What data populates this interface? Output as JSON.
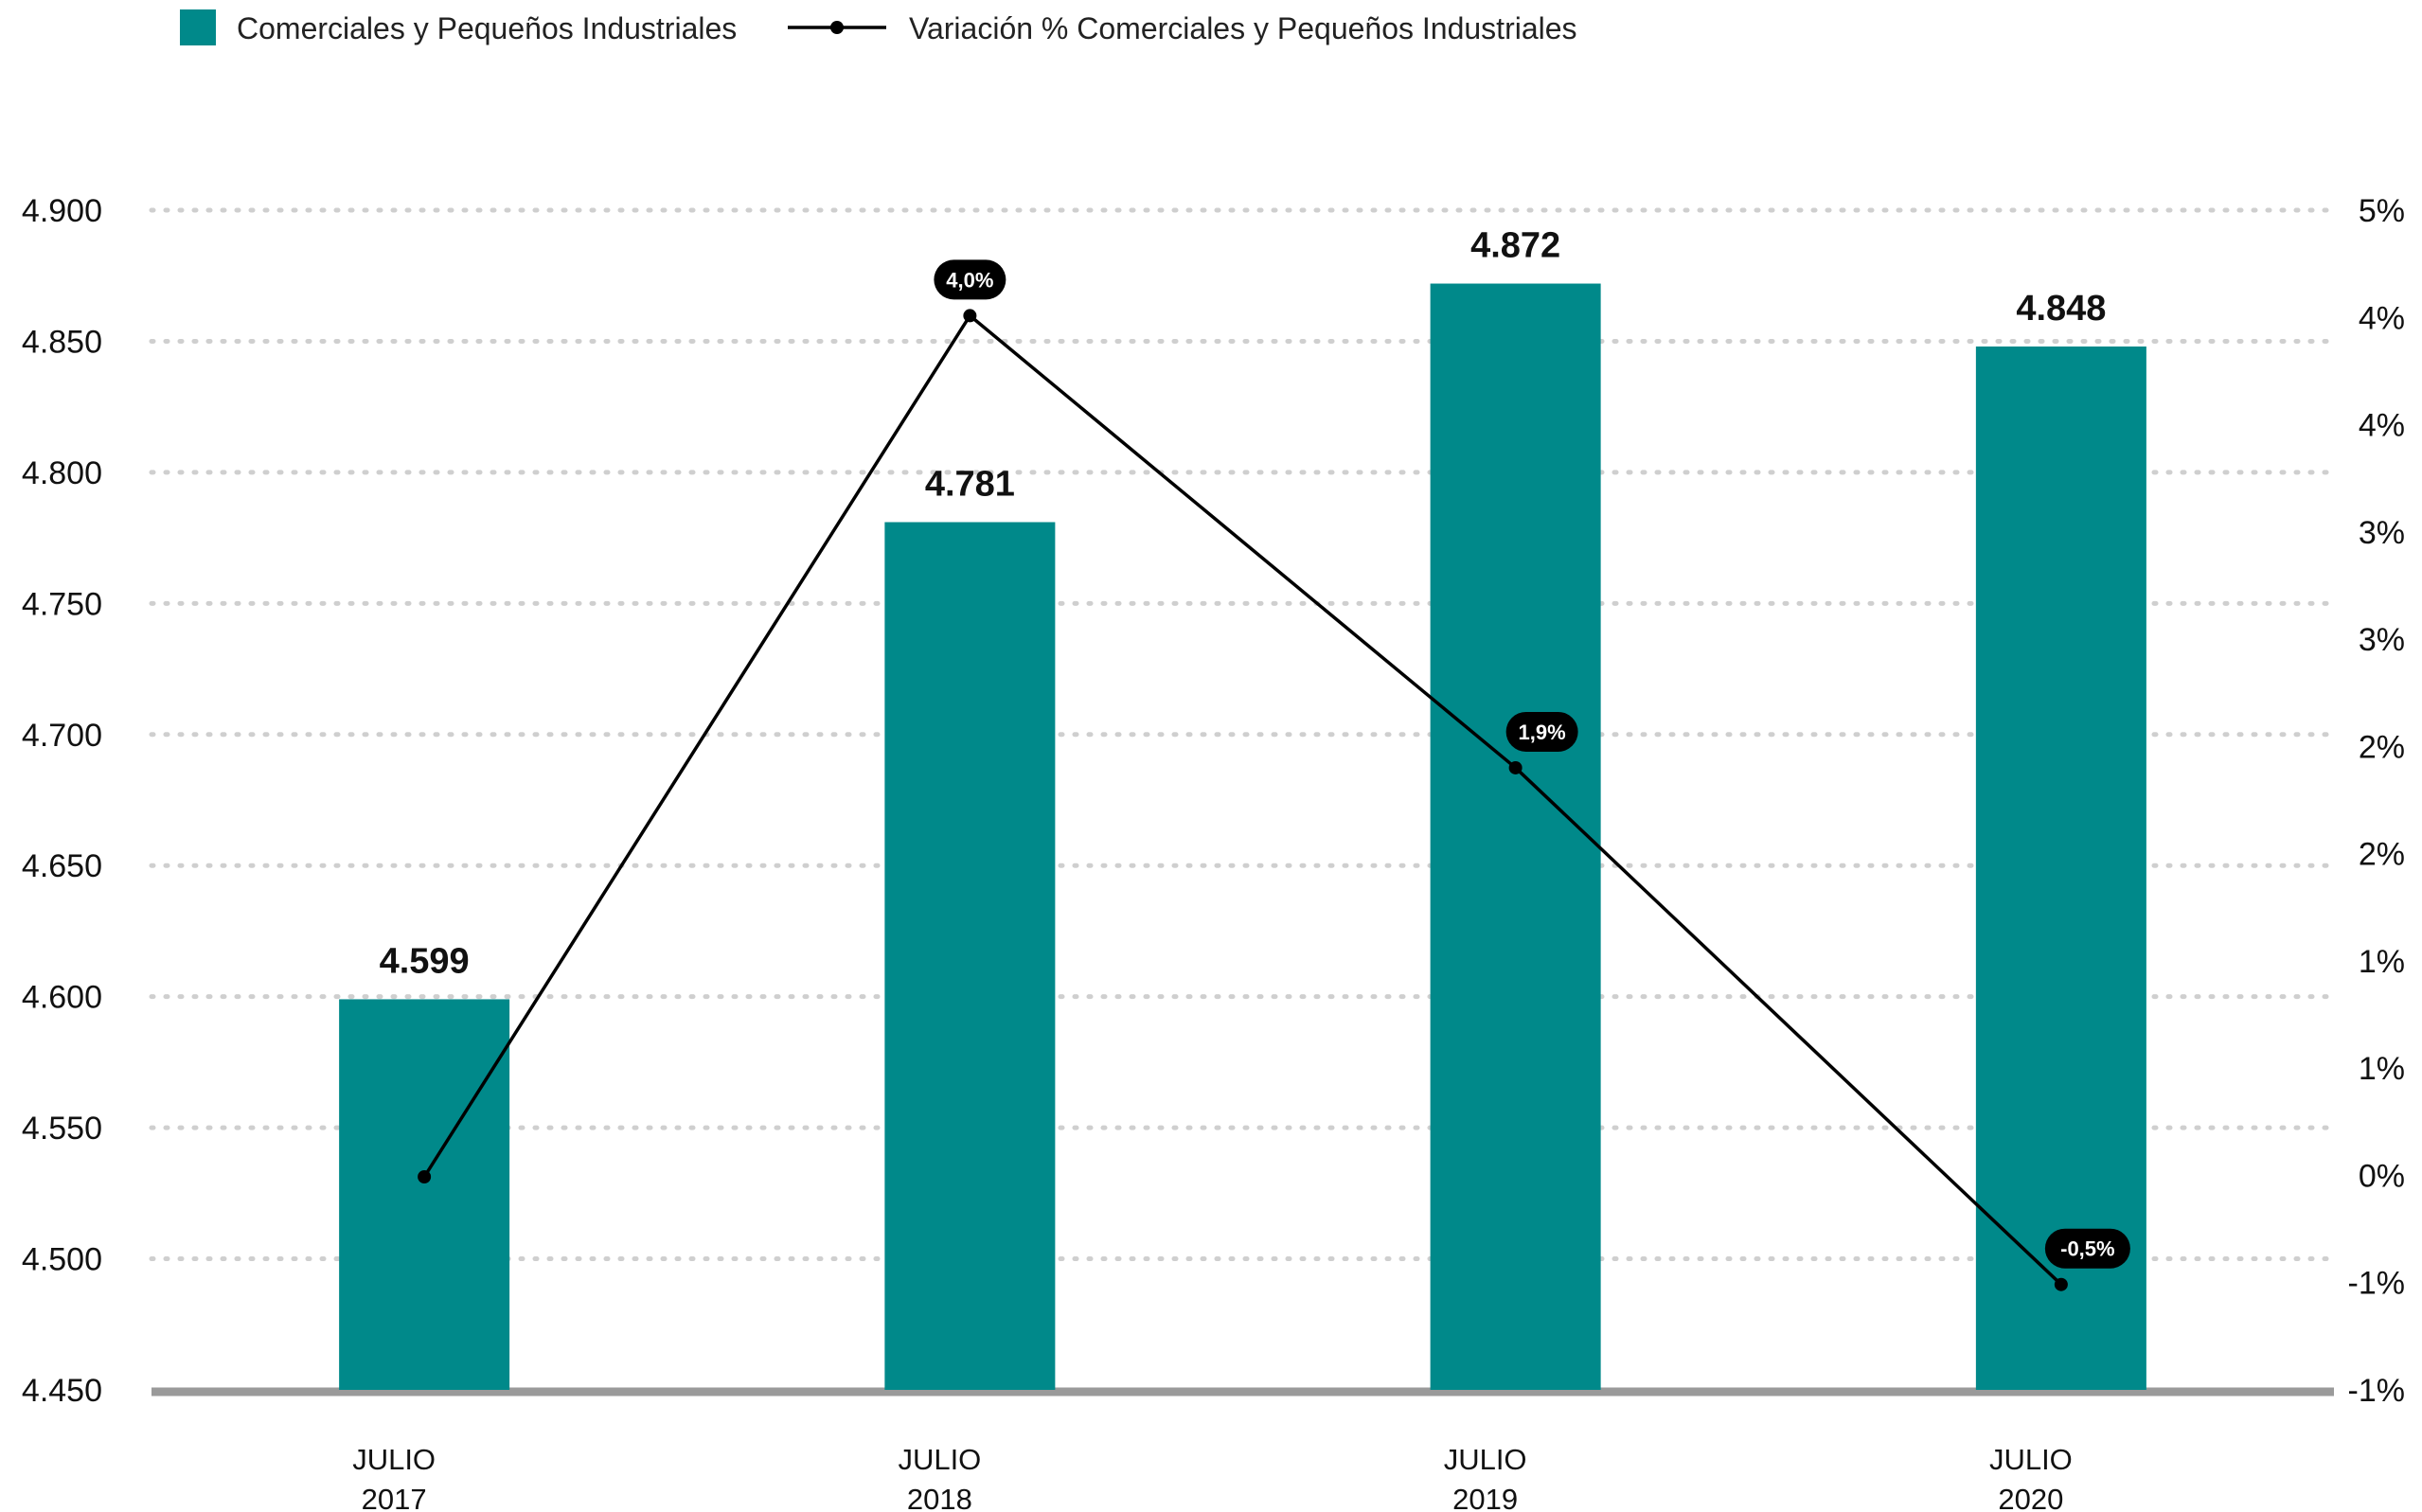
{
  "chart_data": {
    "type": "bar",
    "categories": [
      [
        "JULIO",
        "2017"
      ],
      [
        "JULIO",
        "2018"
      ],
      [
        "JULIO",
        "2019"
      ],
      [
        "JULIO",
        "2020"
      ]
    ],
    "series": [
      {
        "name": "Comerciales y Pequeños Industriales",
        "type": "bar",
        "axis": "left",
        "values": [
          4599,
          4781,
          4872,
          4848
        ],
        "labels": [
          "4.599",
          "4.781",
          "4.872",
          "4.848"
        ],
        "color": "#00898a"
      },
      {
        "name": "Variación % Comerciales y Pequeños Industriales",
        "type": "line",
        "axis": "right",
        "values": [
          null,
          4.0,
          1.9,
          -0.5
        ],
        "labels": [
          "",
          "4,0%",
          "1,9%",
          "-0,5%"
        ],
        "color": "#000000"
      }
    ],
    "y_left": {
      "ylim": [
        4450,
        4900
      ],
      "ticks": [
        4900,
        4850,
        4800,
        4750,
        4700,
        4650,
        4600,
        4550,
        4500,
        4450
      ],
      "tick_labels": [
        "4.900",
        "4.850",
        "4.800",
        "4.750",
        "4.700",
        "4.650",
        "4.600",
        "4.550",
        "4.500",
        "4.450"
      ]
    },
    "y_right": {
      "ylim": [
        -1.0,
        4.5
      ],
      "tick_labels": [
        "5%",
        "4%",
        "4%",
        "3%",
        "3%",
        "2%",
        "2%",
        "1%",
        "1%",
        "0%",
        "-1%",
        "-1%"
      ]
    },
    "grid": true,
    "legend_position": "top-left"
  }
}
